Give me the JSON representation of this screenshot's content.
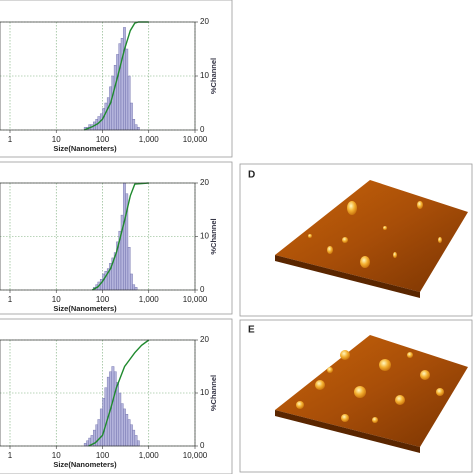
{
  "chart_data": [
    {
      "type": "histogram",
      "xlabel": "Size(Nanometers)",
      "y2label": "%Channel",
      "xlog": true,
      "grid": true,
      "xlim": [
        1,
        10000
      ],
      "xticks": [
        1,
        10,
        100,
        {
          "value": 1000,
          "label": "1,000"
        },
        {
          "value": 10000,
          "label": "10,000"
        }
      ],
      "ylim": [
        0,
        100
      ],
      "y2lim": [
        0,
        20
      ],
      "y2ticks": [
        0,
        10,
        20
      ],
      "color": "#b4b4dc",
      "bins": [
        40,
        45,
        50,
        56,
        63,
        71,
        79,
        89,
        100,
        112,
        126,
        141,
        158,
        178,
        200,
        224,
        251,
        282,
        316,
        355,
        398,
        447,
        501,
        562,
        631
      ],
      "values": [
        0.5,
        0.5,
        1,
        1,
        1.5,
        2,
        2.5,
        3,
        4,
        5,
        6,
        8,
        10,
        12,
        14,
        16,
        17,
        19,
        15,
        10,
        5,
        2,
        1,
        0.5
      ],
      "line": {
        "color": "#1f8a2e",
        "x": [
          40,
          60,
          80,
          100,
          150,
          200,
          300,
          400,
          500,
          600,
          1000
        ],
        "values": [
          0,
          3,
          6,
          10,
          25,
          45,
          75,
          92,
          99,
          100,
          100
        ]
      }
    },
    {
      "type": "histogram",
      "xlabel": "Size(Nanometers)",
      "y2label": "%Channel",
      "xlog": true,
      "grid": true,
      "xlim": [
        1,
        10000
      ],
      "xticks": [
        1,
        10,
        100,
        {
          "value": 1000,
          "label": "1,000"
        },
        {
          "value": 10000,
          "label": "10,000"
        }
      ],
      "ylim": [
        0,
        100
      ],
      "y2lim": [
        0,
        20
      ],
      "y2ticks": [
        0,
        10,
        20
      ],
      "color": "#b4b4dc",
      "bins": [
        40,
        45,
        50,
        56,
        63,
        71,
        79,
        89,
        100,
        112,
        126,
        141,
        158,
        178,
        200,
        224,
        251,
        282,
        316,
        355,
        398,
        447,
        501,
        562,
        631
      ],
      "values": [
        0,
        0,
        0,
        0,
        0.5,
        1,
        1.5,
        2,
        3,
        3.5,
        4,
        5,
        6,
        7,
        9,
        11,
        14,
        20,
        18,
        8,
        3,
        1,
        0.5,
        0
      ],
      "line": {
        "color": "#1f8a2e",
        "x": [
          60,
          80,
          100,
          150,
          200,
          300,
          400,
          500,
          1000
        ],
        "values": [
          0,
          3,
          8,
          20,
          35,
          65,
          88,
          99,
          100
        ]
      }
    },
    {
      "type": "histogram",
      "xlabel": "Size(Nanometers)",
      "y2label": "%Channel",
      "xlog": true,
      "grid": true,
      "xlim": [
        1,
        10000
      ],
      "xticks": [
        1,
        10,
        100,
        {
          "value": 1000,
          "label": "1,000"
        },
        {
          "value": 10000,
          "label": "10,000"
        }
      ],
      "ylim": [
        0,
        100
      ],
      "y2lim": [
        0,
        20
      ],
      "y2ticks": [
        0,
        10,
        20
      ],
      "color": "#b4b4dc",
      "bins": [
        40,
        45,
        50,
        56,
        63,
        71,
        79,
        89,
        100,
        112,
        126,
        141,
        158,
        178,
        200,
        224,
        251,
        282,
        316,
        355,
        398,
        447,
        501,
        562,
        631
      ],
      "values": [
        0.5,
        1,
        1.5,
        2,
        3,
        4,
        5,
        7,
        9,
        11,
        13,
        14,
        15,
        14,
        12,
        10,
        8,
        7,
        6,
        5,
        4,
        3,
        2,
        1
      ],
      "line": {
        "color": "#1f8a2e",
        "x": [
          50,
          70,
          100,
          150,
          200,
          300,
          500,
          700,
          1000
        ],
        "values": [
          0,
          3,
          10,
          35,
          55,
          75,
          88,
          95,
          100
        ]
      }
    }
  ],
  "panels": {
    "labels": [
      "D",
      "E"
    ]
  }
}
